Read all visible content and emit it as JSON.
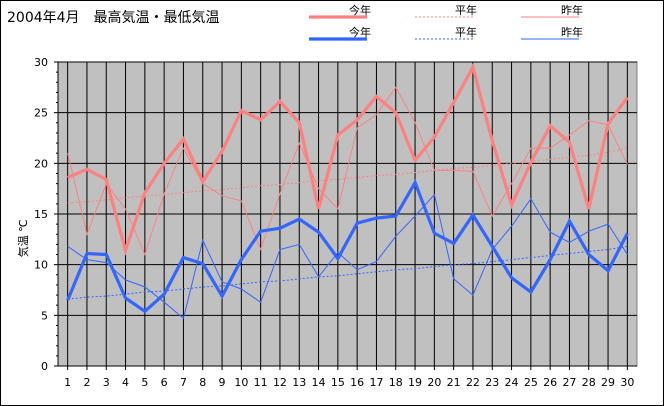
{
  "chart_data": {
    "type": "line",
    "title": "2004年4月　最高気温・最低気温",
    "ylabel": "気温 ℃",
    "xlabel": "",
    "ylim": [
      0,
      30
    ],
    "yticks": [
      0,
      5,
      10,
      15,
      20,
      25,
      30
    ],
    "x": [
      1,
      2,
      3,
      4,
      5,
      6,
      7,
      8,
      9,
      10,
      11,
      12,
      13,
      14,
      15,
      16,
      17,
      18,
      19,
      20,
      21,
      22,
      23,
      24,
      25,
      26,
      27,
      28,
      29,
      30
    ],
    "grid": true,
    "plot_background": "#c0c0c0",
    "legend_position": "top",
    "series": [
      {
        "name": "今年",
        "group": "最高気温",
        "style": "thick",
        "color": "#ff8080",
        "values": [
          18.6,
          19.4,
          18.4,
          11.4,
          17.1,
          20.0,
          22.4,
          18.2,
          21.2,
          25.2,
          24.3,
          26.1,
          24.0,
          15.5,
          22.8,
          24.3,
          26.6,
          25.0,
          20.3,
          22.6,
          26.0,
          29.5,
          22.2,
          15.9,
          20.1,
          23.7,
          22.1,
          15.5,
          23.9,
          26.5
        ]
      },
      {
        "name": "平年",
        "group": "最高気温",
        "style": "dotted",
        "color": "#ff8080",
        "values": [
          16.1,
          16.2,
          16.4,
          16.6,
          16.8,
          16.9,
          17.1,
          17.3,
          17.4,
          17.6,
          17.8,
          17.9,
          18.1,
          18.3,
          18.4,
          18.6,
          18.8,
          18.9,
          19.1,
          19.3,
          19.5,
          19.6,
          19.8,
          20.0,
          20.2,
          20.4,
          20.6,
          20.8,
          21.1,
          21.5
        ]
      },
      {
        "name": "昨年",
        "group": "最高気温",
        "style": "thin",
        "color": "#ff8080",
        "values": [
          21.0,
          13.0,
          18.0,
          15.5,
          11.0,
          17.0,
          21.5,
          18.0,
          16.8,
          16.3,
          11.5,
          17.0,
          22.0,
          17.5,
          15.5,
          23.5,
          24.8,
          27.5,
          24.0,
          19.3,
          19.3,
          19.2,
          14.8,
          18.0,
          21.5,
          21.5,
          22.8,
          24.2,
          23.8,
          19.9
        ]
      },
      {
        "name": "今年",
        "group": "最低気温",
        "style": "thick",
        "color": "#3366ff",
        "values": [
          6.5,
          11.1,
          11.0,
          6.7,
          5.4,
          7.1,
          10.7,
          10.1,
          6.9,
          10.5,
          13.3,
          13.6,
          14.5,
          13.2,
          10.6,
          14.1,
          14.6,
          14.8,
          18.1,
          13.1,
          12.1,
          14.9,
          11.8,
          8.7,
          7.3,
          10.5,
          14.3,
          11.0,
          9.4,
          13.1
        ]
      },
      {
        "name": "平年",
        "group": "最低気温",
        "style": "dotted",
        "color": "#3366ff",
        "values": [
          6.6,
          6.8,
          6.9,
          7.1,
          7.3,
          7.4,
          7.6,
          7.8,
          7.9,
          8.1,
          8.3,
          8.4,
          8.6,
          8.8,
          8.9,
          9.1,
          9.3,
          9.5,
          9.6,
          9.8,
          10.0,
          10.1,
          10.3,
          10.5,
          10.7,
          10.9,
          11.1,
          11.3,
          11.5,
          11.8
        ]
      },
      {
        "name": "昨年",
        "group": "最低気温",
        "style": "thin",
        "color": "#3366ff",
        "values": [
          11.8,
          10.5,
          10.2,
          8.5,
          7.8,
          6.3,
          4.7,
          12.4,
          8.3,
          7.6,
          6.3,
          11.5,
          12.0,
          8.8,
          11.2,
          9.5,
          10.3,
          12.8,
          14.8,
          16.9,
          8.6,
          7.0,
          11.5,
          13.8,
          16.5,
          13.2,
          12.2,
          13.3,
          14.0,
          11.0
        ]
      }
    ]
  }
}
